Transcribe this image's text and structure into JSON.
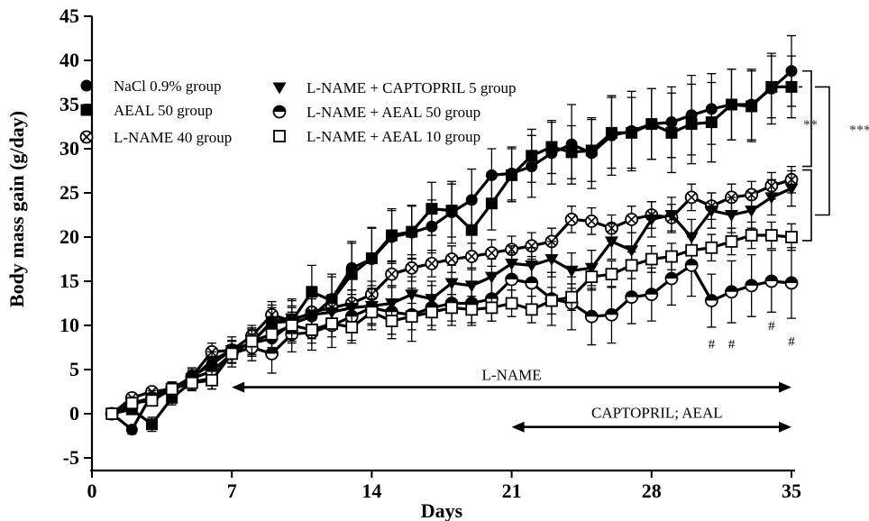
{
  "chart_data": {
    "type": "line",
    "title": "",
    "xlabel": "Days",
    "ylabel": "Body mass gain (g/day)",
    "xlim": [
      0,
      35
    ],
    "ylim": [
      -5,
      45
    ],
    "xticks": [
      0,
      7,
      14,
      21,
      28,
      35
    ],
    "yticks": [
      -5,
      0,
      5,
      10,
      15,
      20,
      25,
      30,
      35,
      40,
      45
    ],
    "legend_position": "top-left",
    "x": [
      1,
      2,
      3,
      4,
      5,
      6,
      7,
      8,
      9,
      10,
      11,
      12,
      13,
      14,
      15,
      16,
      17,
      18,
      19,
      20,
      21,
      22,
      23,
      24,
      25,
      26,
      27,
      28,
      29,
      30,
      31,
      32,
      33,
      34,
      35
    ],
    "series": [
      {
        "name": "NaCl 0.9% group",
        "marker": "filled-circle",
        "values": [
          0,
          -1.8,
          2.2,
          2.8,
          4.2,
          5.6,
          7.2,
          8.0,
          8.5,
          10.2,
          11.0,
          13.0,
          16.5,
          17.5,
          20.0,
          20.5,
          21.2,
          22.8,
          24.2,
          27.0,
          27.2,
          28.0,
          29.5,
          30.5,
          29.5,
          31.5,
          32.0,
          32.8,
          33.0,
          33.8,
          34.5,
          35.0,
          35.0,
          36.8,
          38.8
        ],
        "errors": [
          0,
          0.5,
          0.8,
          0.8,
          1,
          1.2,
          1.5,
          1.5,
          2,
          2,
          2.5,
          2.5,
          3,
          3.5,
          3,
          3,
          3,
          3.5,
          3.5,
          3,
          3,
          3.5,
          3.5,
          4.5,
          4,
          4.5,
          4.5,
          4,
          4,
          4.5,
          4,
          4,
          4,
          4,
          4
        ]
      },
      {
        "name": "AEAL 50 group",
        "marker": "filled-square",
        "values": [
          0,
          0.5,
          -1.2,
          1.8,
          3.6,
          4.0,
          6.8,
          8.2,
          10.3,
          10.5,
          13.8,
          12.8,
          15.8,
          17.6,
          20.2,
          20.6,
          23.2,
          23.0,
          20.8,
          23.8,
          27.0,
          29.2,
          30.2,
          29.6,
          29.8,
          31.8,
          31.8,
          32.8,
          31.8,
          32.8,
          33.0,
          35.0,
          34.8,
          37.0,
          37.0
        ],
        "errors": [
          0,
          0.5,
          0.8,
          0.8,
          1,
          1.2,
          1.5,
          1.5,
          2,
          2.5,
          3,
          3,
          3.5,
          3.5,
          3,
          3,
          3,
          3,
          3,
          3,
          3,
          3,
          3,
          3,
          3.5,
          4,
          4,
          4,
          4.5,
          4.5,
          4.5,
          4,
          4,
          3.5,
          3.5
        ]
      },
      {
        "name": "L-NAME 40 group",
        "marker": "circle-cross",
        "values": [
          0,
          1.8,
          2.5,
          2.8,
          4.2,
          7.0,
          7.2,
          8.8,
          11.2,
          10.5,
          11.5,
          12.0,
          12.5,
          13.5,
          15.8,
          16.5,
          17.0,
          17.5,
          17.8,
          18.2,
          18.6,
          19.0,
          19.5,
          22.0,
          21.8,
          21.0,
          22.0,
          22.5,
          22.2,
          24.5,
          23.5,
          24.5,
          24.8,
          25.8,
          26.5
        ],
        "errors": [
          0,
          0.5,
          0.5,
          0.8,
          0.8,
          1,
          1,
          1.2,
          1.5,
          1.5,
          1.5,
          1.5,
          1.5,
          1.5,
          1.5,
          1.5,
          1.5,
          1.5,
          1.5,
          1.5,
          1.5,
          1.5,
          1.5,
          1.5,
          1.5,
          1.5,
          1.5,
          1.5,
          1.5,
          1.5,
          1.5,
          1.5,
          1.5,
          1.5,
          1.5
        ]
      },
      {
        "name": "L-NAME + CAPTOPRIL 5 group",
        "marker": "filled-triangle-down",
        "values": [
          0,
          1.0,
          1.8,
          2.6,
          4.0,
          6.0,
          7.2,
          8.0,
          10.5,
          10.8,
          11.2,
          11.5,
          12.0,
          12.2,
          12.5,
          13.5,
          13.0,
          14.8,
          14.5,
          15.5,
          17.0,
          16.8,
          17.5,
          16.2,
          16.5,
          19.5,
          18.5,
          22.0,
          22.5,
          20.0,
          23.0,
          22.5,
          23.0,
          24.5,
          25.5
        ],
        "errors": [
          0,
          0.5,
          0.8,
          0.8,
          0.8,
          1,
          1,
          1.5,
          1.5,
          2,
          2,
          2,
          2,
          2,
          2,
          2,
          2,
          2,
          2,
          2,
          2,
          2,
          2,
          2,
          2,
          2,
          2,
          2,
          2,
          2,
          2,
          2,
          2,
          2,
          2
        ]
      },
      {
        "name": "L-NAME + AEAL 50 group",
        "marker": "half-filled-circle",
        "values": [
          0,
          1.2,
          1.8,
          2.8,
          4.0,
          4.8,
          6.8,
          7.5,
          6.8,
          9.0,
          9.2,
          10.0,
          11.0,
          12.0,
          11.5,
          11.2,
          12.0,
          12.5,
          12.5,
          13.0,
          15.2,
          14.8,
          13.0,
          12.5,
          11.0,
          11.2,
          13.2,
          13.5,
          15.3,
          16.8,
          12.8,
          13.8,
          14.5,
          15.0,
          14.8
        ],
        "errors": [
          0,
          0.5,
          0.5,
          0.8,
          0.8,
          1,
          1,
          1.5,
          2.2,
          2,
          2,
          2.5,
          3,
          2.5,
          3,
          3,
          2.5,
          2.5,
          2.5,
          2.5,
          3,
          3,
          3,
          3,
          3.2,
          3.2,
          3,
          3,
          3,
          3.5,
          3,
          3.5,
          3.5,
          3.5,
          4
        ]
      },
      {
        "name": "L-NAME + AEAL 10 group",
        "marker": "open-square",
        "values": [
          0,
          1.2,
          1.5,
          2.8,
          3.5,
          3.8,
          6.8,
          8.2,
          9.0,
          10.0,
          9.5,
          10.2,
          9.8,
          11.5,
          10.5,
          11.0,
          11.5,
          12.0,
          11.8,
          12.0,
          12.5,
          11.8,
          12.8,
          13.2,
          15.5,
          15.8,
          16.8,
          17.5,
          17.8,
          18.5,
          18.8,
          19.5,
          20.2,
          20.2,
          20.0
        ],
        "errors": [
          0,
          0.5,
          0.5,
          0.8,
          0.8,
          1,
          1,
          1.5,
          1.5,
          1.5,
          1.5,
          1.5,
          1.5,
          1.5,
          1.5,
          1.5,
          1.5,
          1.5,
          1.5,
          1.5,
          1.5,
          1.5,
          1.5,
          1.5,
          1.5,
          1.5,
          1.5,
          1.5,
          1.5,
          1.5,
          1.5,
          1.5,
          1.5,
          1.5,
          1.5
        ]
      }
    ],
    "annotations": {
      "lname_label": "L-NAME",
      "lname_range": [
        7,
        35
      ],
      "lname_y": 3,
      "treatment_label": "CAPTOPRIL; AEAL",
      "treatment_range": [
        21,
        35
      ],
      "treatment_y": -1.5,
      "sig_inner": "**",
      "sig_outer": "***",
      "hash_symbol": "#",
      "hash_points": [
        {
          "x": 31,
          "y": 8.2
        },
        {
          "x": 32,
          "y": 8.2
        },
        {
          "x": 34,
          "y": 10.3
        },
        {
          "x": 35,
          "y": 8.5
        }
      ]
    }
  }
}
